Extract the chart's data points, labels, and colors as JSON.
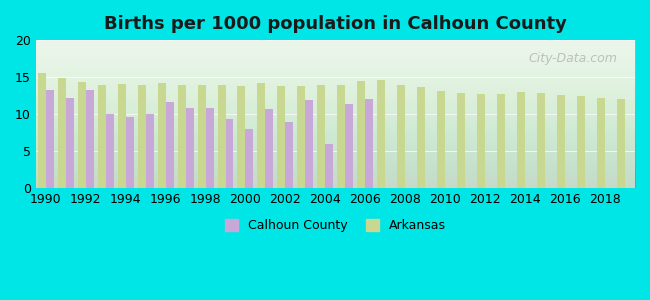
{
  "title": "Births per 1000 population in Calhoun County",
  "background_color": "#00e5e5",
  "plot_bg_top": "#e8f5e8",
  "plot_bg_bottom": "#f0fff0",
  "years": [
    1990,
    1991,
    1992,
    1993,
    1994,
    1995,
    1996,
    1997,
    1998,
    1999,
    2000,
    2001,
    2002,
    2003,
    2004,
    2005,
    2006,
    2007,
    2008,
    2009,
    2010,
    2011,
    2012,
    2013,
    2014,
    2015,
    2016,
    2017,
    2018,
    2019
  ],
  "calhoun": [
    13.3,
    12.2,
    13.3,
    10.0,
    9.7,
    10.1,
    11.7,
    10.9,
    10.9,
    9.4,
    8.0,
    10.7,
    9.0,
    11.9,
    6.0,
    11.4,
    12.0,
    null,
    null,
    null,
    null,
    null,
    null,
    null,
    null,
    null,
    null,
    null,
    null,
    null
  ],
  "arkansas": [
    15.5,
    14.9,
    14.3,
    14.0,
    14.1,
    13.9,
    14.2,
    13.9,
    13.9,
    13.9,
    13.8,
    14.2,
    13.8,
    13.8,
    13.9,
    13.9,
    14.5,
    14.6,
    14.0,
    13.7,
    13.1,
    12.9,
    12.8,
    12.8,
    13.0,
    12.9,
    12.6,
    12.4,
    12.2,
    12.1
  ],
  "calhoun_color": "#c8a8d8",
  "arkansas_color": "#c8d890",
  "ylim": [
    0,
    20
  ],
  "yticks": [
    0,
    5,
    10,
    15,
    20
  ],
  "watermark": "City-Data.com",
  "legend_calhoun": "Calhoun County",
  "legend_arkansas": "Arkansas"
}
